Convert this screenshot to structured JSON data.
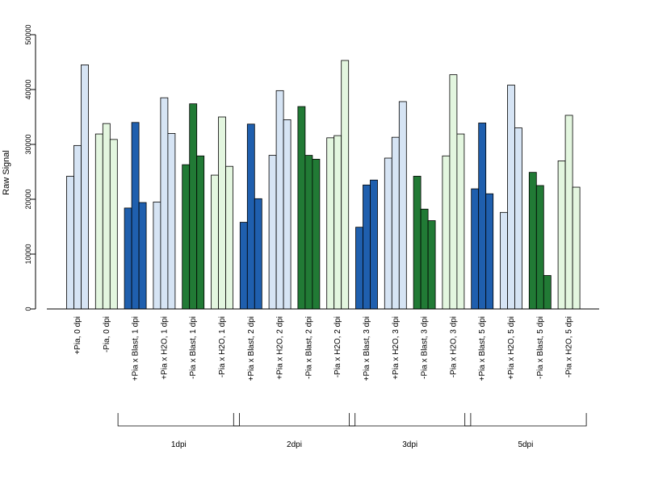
{
  "chart_data": {
    "type": "bar",
    "ylabel": "Raw Signal",
    "ylim": [
      0,
      50000
    ],
    "yticks": [
      0,
      10000,
      20000,
      30000,
      40000,
      50000
    ],
    "grid": false,
    "colors": {
      "light_blue": "#d6e4f4",
      "dark_blue": "#1f5fae",
      "light_green": "#e3f6df",
      "dark_green": "#217a35",
      "edge": "#000000"
    },
    "categories": [
      "+Pia, 0 dpi",
      "-Pia, 0 dpi",
      "+Pia x Blast, 1 dpi",
      "+Pia x H2O, 1 dpi",
      "-Pia x Blast, 1 dpi",
      "-Pia x H2O, 1 dpi",
      "+Pia x Blast, 2 dpi",
      "+Pia x H2O, 2 dpi",
      "-Pia x Blast, 2 dpi",
      "-Pia x H2O, 2 dpi",
      "+Pia x Blast, 3 dpi",
      "+Pia x H2O, 3 dpi",
      "-Pia x Blast, 3 dpi",
      "-Pia x H2O, 3 dpi",
      "+Pia x Blast, 5 dpi",
      "+Pia x H2O, 5 dpi",
      "-Pia x Blast, 5 dpi",
      "-Pia x H2O, 5 dpi"
    ],
    "category_colors": [
      "light_blue",
      "light_green",
      "dark_blue",
      "light_blue",
      "dark_green",
      "light_green",
      "dark_blue",
      "light_blue",
      "dark_green",
      "light_green",
      "dark_blue",
      "light_blue",
      "dark_green",
      "light_green",
      "dark_blue",
      "light_blue",
      "dark_green",
      "light_green"
    ],
    "replicates": [
      [
        24200,
        29800,
        44500
      ],
      [
        31900,
        33800,
        30900
      ],
      [
        18400,
        34000,
        19400
      ],
      [
        19500,
        38500,
        32000
      ],
      [
        26300,
        37400,
        27900
      ],
      [
        24400,
        35000,
        26000
      ],
      [
        15800,
        33700,
        20100
      ],
      [
        28000,
        39800,
        34500
      ],
      [
        36900,
        28000,
        27300
      ],
      [
        31200,
        31600,
        45300
      ],
      [
        14900,
        22600,
        23500
      ],
      [
        27500,
        31300,
        37800
      ],
      [
        24200,
        18200,
        16100
      ],
      [
        27900,
        42700,
        31900
      ],
      [
        21900,
        33900,
        21000
      ],
      [
        17600,
        40800,
        33000
      ],
      [
        24900,
        22500,
        6100
      ],
      [
        27000,
        35300,
        22200
      ]
    ],
    "groups": [
      {
        "label": "1dpi",
        "from": 2,
        "to": 5
      },
      {
        "label": "2dpi",
        "from": 6,
        "to": 9
      },
      {
        "label": "3dpi",
        "from": 10,
        "to": 13
      },
      {
        "label": "5dpi",
        "from": 14,
        "to": 17
      }
    ]
  }
}
